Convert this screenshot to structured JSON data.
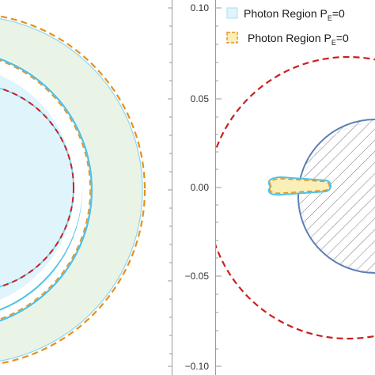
{
  "colors": {
    "light_blue_fill": "#dff4fb",
    "light_blue_edge": "#4fc3e8",
    "green_fill": "#e9f3e6",
    "orange_dash": "#e8901a",
    "red_dash": "#cc1f1f",
    "steel_blue": "#5b7fb4",
    "yellow_fill": "#fbefb8",
    "axis": "#9a9a9a"
  },
  "chart_data": [
    {
      "type": "scatter",
      "panel": "left",
      "description_kind": "region plot",
      "title": "",
      "xlabel": "",
      "ylabel": "",
      "tick_labels_visible": false,
      "series": []
    },
    {
      "type": "scatter",
      "panel": "right",
      "title": "",
      "xlabel": "",
      "ylabel": "",
      "xlim": [
        -0.105,
        0.105
      ],
      "ylim": [
        -0.1,
        0.1
      ],
      "yticks": [
        "0.10",
        "0.05",
        "0.00",
        "−0.05",
        "−0.10"
      ],
      "legend": {
        "position": "top-left",
        "entries": [
          {
            "text": "Photon Region P",
            "sub": "E",
            "suffix": "=0"
          },
          {
            "text": "Photon Region P",
            "sub": "E",
            "suffix": "=0"
          }
        ]
      },
      "series": [
        {
          "shape": "dashed-circle",
          "center": [
            0.0,
            0.0
          ],
          "radius": 0.085
        },
        {
          "shape": "hatched-disk",
          "center": [
            0.06,
            0.0
          ],
          "radius": 0.06
        },
        {
          "shape": "lens",
          "x": [
            -0.038,
            0.028
          ],
          "y": [
            -0.006,
            0.006
          ]
        }
      ]
    }
  ]
}
